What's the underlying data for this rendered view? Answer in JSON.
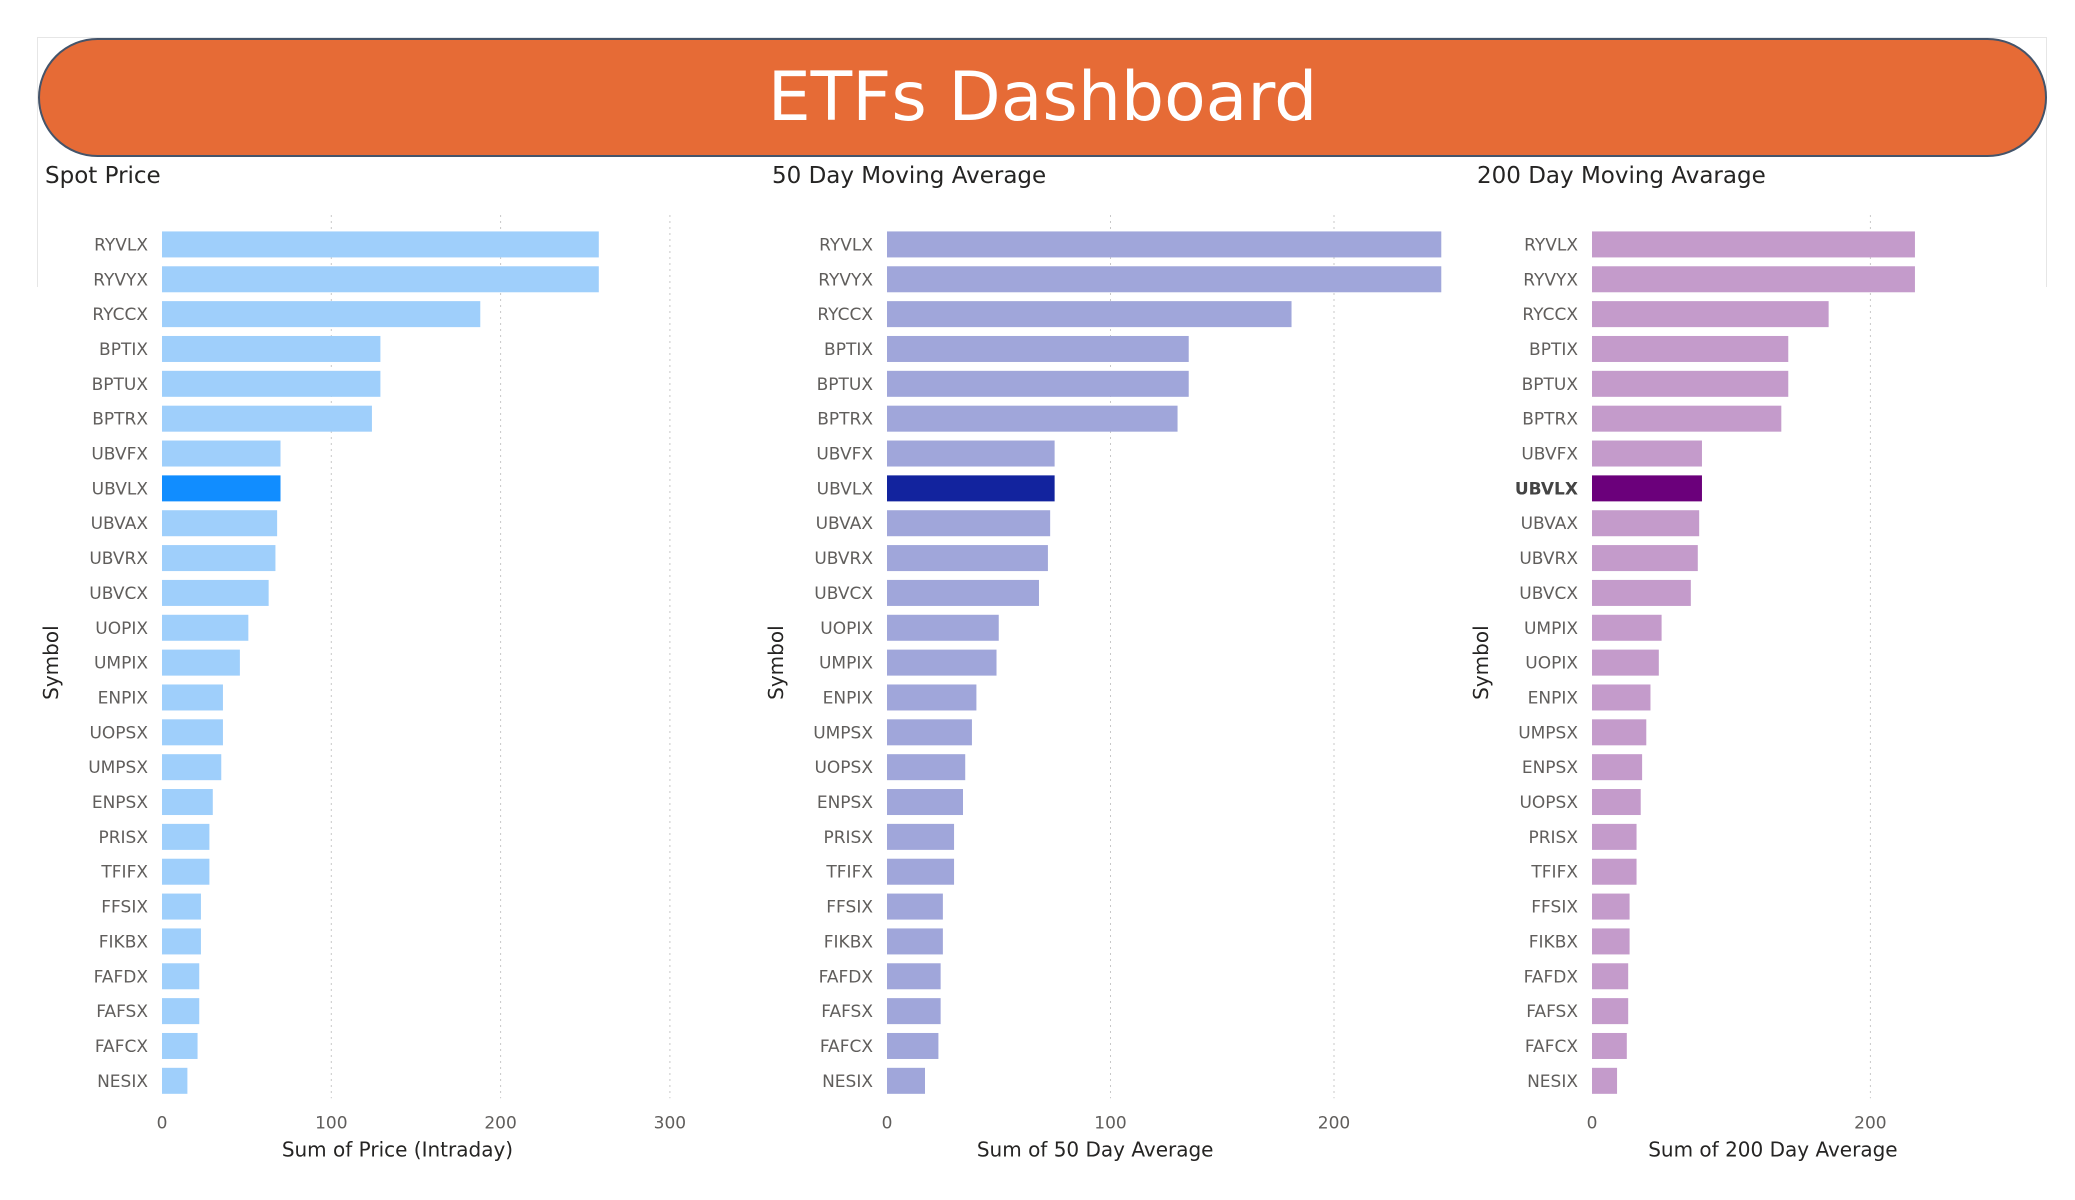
{
  "dashboard": {
    "title": "ETFs Dashboard"
  },
  "chart_data": [
    {
      "type": "bar",
      "title": "Spot Price",
      "xlabel": "Sum of Price (Intraday)",
      "ylabel": "Symbol",
      "xlim": [
        0,
        300
      ],
      "xticks": [
        "0",
        "100",
        "200",
        "300"
      ],
      "categories": [
        "RYVLX",
        "RYVYX",
        "RYCCX",
        "BPTIX",
        "BPTUX",
        "BPTRX",
        "UBVFX",
        "UBVLX",
        "UBVAX",
        "UBVRX",
        "UBVCX",
        "UOPIX",
        "UMPIX",
        "ENPIX",
        "UOPSX",
        "UMPSX",
        "ENPSX",
        "PRISX",
        "TFIFX",
        "FFSIX",
        "FIKBX",
        "FAFDX",
        "FAFSX",
        "FAFCX",
        "NESIX"
      ],
      "values": [
        258,
        258,
        188,
        129,
        129,
        124,
        70,
        70,
        68,
        67,
        63,
        51,
        46,
        36,
        36,
        35,
        30,
        28,
        28,
        23,
        23,
        22,
        22,
        21,
        15
      ],
      "highlight": "UBVLX",
      "highlight_bold_label": false,
      "colors": {
        "bar": "#9fcffb",
        "highlight": "#118dff"
      },
      "grid": true
    },
    {
      "type": "bar",
      "title": "50 Day Moving Average",
      "xlabel": "Sum of 50 Day Average",
      "ylabel": "Symbol",
      "xlim": [
        0,
        250
      ],
      "xticks": [
        "0",
        "100",
        "200"
      ],
      "categories": [
        "RYVLX",
        "RYVYX",
        "RYCCX",
        "BPTIX",
        "BPTUX",
        "BPTRX",
        "UBVFX",
        "UBVLX",
        "UBVAX",
        "UBVRX",
        "UBVCX",
        "UOPIX",
        "UMPIX",
        "ENPIX",
        "UMPSX",
        "UOPSX",
        "ENPSX",
        "PRISX",
        "TFIFX",
        "FFSIX",
        "FIKBX",
        "FAFDX",
        "FAFSX",
        "FAFCX",
        "NESIX"
      ],
      "values": [
        248,
        248,
        181,
        135,
        135,
        130,
        75,
        75,
        73,
        72,
        68,
        50,
        49,
        40,
        38,
        35,
        34,
        30,
        30,
        25,
        25,
        24,
        24,
        23,
        17
      ],
      "highlight": "UBVLX",
      "highlight_bold_label": false,
      "colors": {
        "bar": "#a0a6da",
        "highlight": "#12239e"
      },
      "grid": true
    },
    {
      "type": "bar",
      "title": "200 Day Moving Avarage",
      "xlabel": "Sum of 200 Day Average",
      "ylabel": "Symbol",
      "xlim": [
        0,
        290
      ],
      "xticks": [
        "0",
        "200"
      ],
      "categories": [
        "RYVLX",
        "RYVYX",
        "RYCCX",
        "BPTIX",
        "BPTUX",
        "BPTRX",
        "UBVFX",
        "UBVLX",
        "UBVAX",
        "UBVRX",
        "UBVCX",
        "UMPIX",
        "UOPIX",
        "ENPIX",
        "UMPSX",
        "ENPSX",
        "UOPSX",
        "PRISX",
        "TFIFX",
        "FFSIX",
        "FIKBX",
        "FAFDX",
        "FAFSX",
        "FAFCX",
        "NESIX"
      ],
      "values": [
        232,
        232,
        170,
        141,
        141,
        136,
        79,
        79,
        77,
        76,
        71,
        50,
        48,
        42,
        39,
        36,
        35,
        32,
        32,
        27,
        27,
        26,
        26,
        25,
        18
      ],
      "highlight": "UBVLX",
      "highlight_bold_label": true,
      "colors": {
        "bar": "#c49bcb",
        "highlight": "#6b007b"
      },
      "grid": true
    }
  ]
}
